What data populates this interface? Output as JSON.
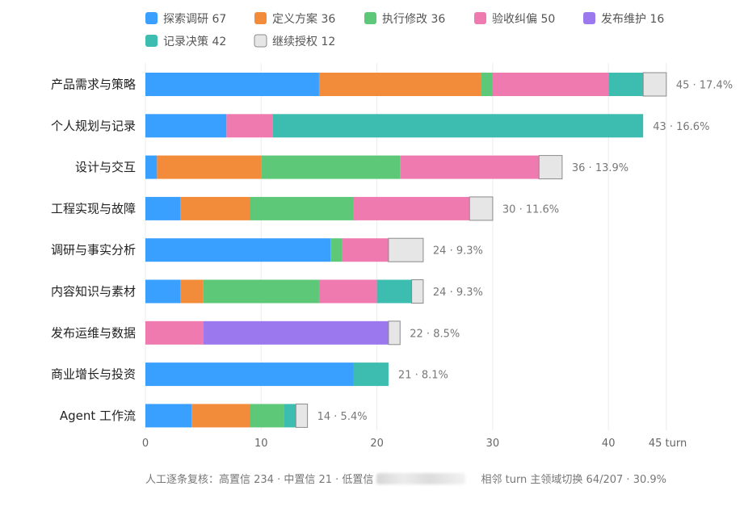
{
  "chart_data": {
    "type": "bar",
    "orientation": "horizontal",
    "stacked": true,
    "x_unit": "turn",
    "xlim": [
      0,
      45
    ],
    "xticks": [
      "0",
      "10",
      "20",
      "30",
      "40",
      "45 turn"
    ],
    "grid": "vertical",
    "legend_position": "top",
    "series": [
      {
        "name": "探索调研",
        "legend": "探索调研 67",
        "color": "#3aa0ff",
        "values": [
          15,
          7,
          1,
          3,
          16,
          3,
          0,
          18,
          4
        ]
      },
      {
        "name": "定义方案",
        "legend": "定义方案 36",
        "color": "#f28c3a",
        "values": [
          14,
          0,
          9,
          6,
          0,
          2,
          0,
          0,
          5
        ]
      },
      {
        "name": "执行修改",
        "legend": "执行修改 36",
        "color": "#5cc878",
        "values": [
          1,
          0,
          12,
          9,
          1,
          10,
          0,
          0,
          3
        ]
      },
      {
        "name": "验收纠偏",
        "legend": "验收纠偏 50",
        "color": "#ee7ab0",
        "values": [
          10,
          4,
          12,
          10,
          4,
          5,
          5,
          0,
          0
        ]
      },
      {
        "name": "发布维护",
        "legend": "发布维护 16",
        "color": "#9b78ee",
        "values": [
          0,
          0,
          0,
          0,
          0,
          0,
          16,
          0,
          0
        ]
      },
      {
        "name": "记录决策",
        "legend": "记录决策 42",
        "color": "#3dbcb0",
        "values": [
          3,
          32,
          0,
          0,
          0,
          3,
          0,
          3,
          1
        ]
      },
      {
        "name": "继续授权",
        "legend": "继续授权 12",
        "color": "#e6e6e6",
        "stroke": "#8a8a8a",
        "values": [
          2,
          0,
          2,
          2,
          3,
          1,
          1,
          0,
          1
        ]
      }
    ],
    "categories": [
      "产品需求与策略",
      "个人规划与记录",
      "设计与交互",
      "工程实现与故障",
      "调研与事实分析",
      "内容知识与素材",
      "发布运维与数据",
      "商业增长与投资",
      "Agent 工作流"
    ],
    "totals": [
      "45 · 17.4%",
      "43 · 16.6%",
      "36 · 13.9%",
      "30 · 11.6%",
      "24 · 9.3%",
      "24 · 9.3%",
      "22 · 8.5%",
      "21 · 8.1%",
      "14 · 5.4%"
    ]
  },
  "footer": {
    "left": "人工逐条复核：高置信 234 · 中置信 21 · 低置信",
    "right": "相邻 turn 主领域切换 64/207 · 30.9%"
  }
}
